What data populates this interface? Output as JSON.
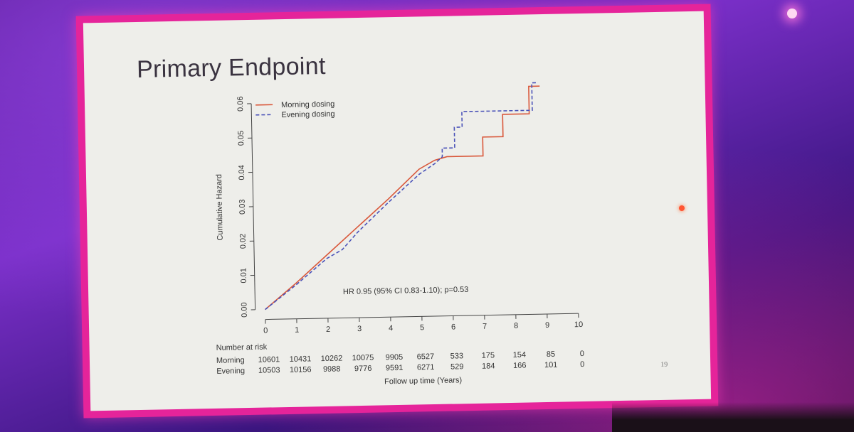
{
  "slide": {
    "title": "Primary Endpoint",
    "page_number": "19"
  },
  "chart_data": {
    "type": "line",
    "title": "",
    "xlabel": "Follow up time (Years)",
    "ylabel": "Cumulative Hazard",
    "xlim": [
      0,
      10
    ],
    "ylim": [
      0,
      0.06
    ],
    "x_ticks": [
      "0",
      "1",
      "2",
      "3",
      "4",
      "5",
      "6",
      "7",
      "8",
      "9",
      "10"
    ],
    "y_ticks": [
      "0.00",
      "0.01",
      "0.02",
      "0.03",
      "0.04",
      "0.05",
      "0.06"
    ],
    "legend_position": "top-left",
    "annotation": "HR 0.95 (95% CI 0.83-1.10); p=0.53",
    "series": [
      {
        "name": "Morning dosing",
        "color": "#d9573a",
        "style": "solid",
        "points": [
          [
            0,
            0
          ],
          [
            1,
            0.0075
          ],
          [
            2,
            0.0155
          ],
          [
            3,
            0.0235
          ],
          [
            4,
            0.0315
          ],
          [
            5,
            0.04
          ],
          [
            5.5,
            0.0425
          ],
          [
            5.9,
            0.0435
          ],
          [
            7.05,
            0.0435
          ],
          [
            7.05,
            0.049
          ],
          [
            7.7,
            0.049
          ],
          [
            7.7,
            0.0555
          ],
          [
            8.55,
            0.0555
          ],
          [
            8.55,
            0.0635
          ],
          [
            8.9,
            0.0635
          ]
        ]
      },
      {
        "name": "Evening dosing",
        "color": "#4a52b8",
        "style": "dashed",
        "points": [
          [
            0,
            0
          ],
          [
            1,
            0.007
          ],
          [
            2,
            0.0145
          ],
          [
            2.5,
            0.017
          ],
          [
            3,
            0.022
          ],
          [
            4,
            0.0305
          ],
          [
            5,
            0.0385
          ],
          [
            5.5,
            0.0415
          ],
          [
            5.75,
            0.0435
          ],
          [
            5.75,
            0.046
          ],
          [
            6.15,
            0.046
          ],
          [
            6.15,
            0.052
          ],
          [
            6.4,
            0.052
          ],
          [
            6.4,
            0.0565
          ],
          [
            8.65,
            0.0565
          ],
          [
            8.65,
            0.0645
          ],
          [
            8.85,
            0.0645
          ]
        ]
      }
    ],
    "risk_table": {
      "label": "Number at risk",
      "times": [
        0,
        1,
        2,
        3,
        4,
        5,
        6,
        7,
        8,
        9,
        10
      ],
      "rows": [
        {
          "group": "Morning",
          "values": [
            "10601",
            "10431",
            "10262",
            "10075",
            "9905",
            "6527",
            "533",
            "175",
            "154",
            "85",
            "0"
          ]
        },
        {
          "group": "Evening",
          "values": [
            "10503",
            "10156",
            "9988",
            "9776",
            "9591",
            "6271",
            "529",
            "184",
            "166",
            "101",
            "0"
          ]
        }
      ]
    }
  }
}
